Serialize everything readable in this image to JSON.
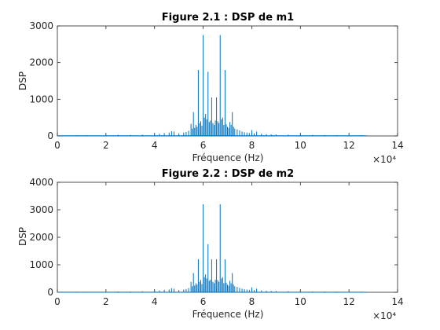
{
  "colors": {
    "series": "#0072BD",
    "axis": "#262626",
    "background": "#ffffff"
  },
  "chart_data": [
    {
      "type": "line",
      "title": "Figure 2.1 : DSP de m1",
      "xlabel": "Fréquence (Hz)",
      "ylabel": "DSP",
      "xlim": [
        0,
        140000
      ],
      "ylim": [
        0,
        3000
      ],
      "x_ticks": [
        0,
        20000,
        40000,
        60000,
        80000,
        100000,
        120000,
        140000
      ],
      "x_tick_labels": [
        "0",
        "2",
        "4",
        "6",
        "8",
        "10",
        "12",
        "14"
      ],
      "x_exponent_label": "×10⁴",
      "y_ticks": [
        0,
        1000,
        2000,
        3000
      ],
      "y_tick_labels": [
        "0",
        "1000",
        "2000",
        "3000"
      ],
      "grid": false,
      "series": [
        {
          "x": [
            2000,
            8000,
            12000,
            20000,
            25000,
            30000,
            35000,
            40000,
            42000,
            44000,
            46000,
            47000,
            48000,
            50000,
            52000,
            53000,
            54000,
            55000,
            55500,
            56000,
            56500,
            57000,
            57500,
            58000,
            58500,
            59000,
            59500,
            60000,
            60500,
            61000,
            61500,
            62000,
            62500,
            63000,
            63500,
            64000,
            64500,
            65000,
            65500,
            66000,
            66500,
            67000,
            67500,
            68000,
            68500,
            69000,
            69500,
            70000,
            70500,
            71000,
            71500,
            72000,
            72500,
            73000,
            74000,
            75000,
            76000,
            77000,
            78000,
            79000,
            80000,
            81000,
            82000,
            84000,
            86000,
            88000,
            90000,
            95000,
            100000,
            105000,
            110000,
            115000,
            120000,
            125000,
            127000
          ],
          "y": [
            15,
            20,
            18,
            25,
            30,
            28,
            35,
            40,
            60,
            80,
            90,
            130,
            120,
            70,
            90,
            110,
            140,
            330,
            200,
            650,
            220,
            300,
            250,
            1800,
            350,
            400,
            280,
            2750,
            500,
            600,
            450,
            1750,
            380,
            420,
            1050,
            350,
            300,
            420,
            1050,
            400,
            350,
            2750,
            450,
            500,
            300,
            1800,
            320,
            250,
            220,
            380,
            300,
            650,
            250,
            200,
            180,
            150,
            120,
            100,
            90,
            80,
            160,
            70,
            120,
            60,
            50,
            45,
            40,
            35,
            30,
            28,
            25,
            22,
            20,
            18,
            12
          ]
        }
      ]
    },
    {
      "type": "line",
      "title": "Figure 2.2 : DSP de m2",
      "xlabel": "Fréquence (Hz)",
      "ylabel": "DSP",
      "xlim": [
        0,
        140000
      ],
      "ylim": [
        0,
        4000
      ],
      "x_ticks": [
        0,
        20000,
        40000,
        60000,
        80000,
        100000,
        120000,
        140000
      ],
      "x_tick_labels": [
        "0",
        "2",
        "4",
        "6",
        "8",
        "10",
        "12",
        "14"
      ],
      "x_exponent_label": "×10⁴",
      "y_ticks": [
        0,
        1000,
        2000,
        3000,
        4000
      ],
      "y_tick_labels": [
        "0",
        "1000",
        "2000",
        "3000",
        "4000"
      ],
      "grid": false,
      "series": [
        {
          "x": [
            2000,
            8000,
            12000,
            20000,
            25000,
            30000,
            35000,
            40000,
            42000,
            44000,
            46000,
            47000,
            48000,
            50000,
            52000,
            53000,
            54000,
            55000,
            55500,
            56000,
            56500,
            57000,
            57500,
            58000,
            58500,
            59000,
            59500,
            60000,
            60500,
            61000,
            61500,
            62000,
            62500,
            63000,
            63500,
            64000,
            64500,
            65000,
            65500,
            66000,
            66500,
            67000,
            67500,
            68000,
            68500,
            69000,
            69500,
            70000,
            70500,
            71000,
            71500,
            72000,
            72500,
            73000,
            74000,
            75000,
            76000,
            77000,
            78000,
            79000,
            80000,
            81000,
            82000,
            84000,
            86000,
            88000,
            90000,
            95000,
            100000,
            105000,
            110000,
            115000,
            120000,
            125000,
            127000
          ],
          "y": [
            15,
            20,
            18,
            25,
            30,
            28,
            35,
            45,
            65,
            90,
            100,
            150,
            130,
            80,
            100,
            120,
            150,
            380,
            220,
            700,
            250,
            330,
            280,
            1200,
            380,
            450,
            300,
            3200,
            550,
            650,
            500,
            1750,
            420,
            460,
            1200,
            380,
            330,
            460,
            1200,
            440,
            380,
            3200,
            500,
            550,
            330,
            1200,
            350,
            280,
            240,
            420,
            330,
            700,
            280,
            220,
            200,
            160,
            130,
            110,
            100,
            90,
            180,
            80,
            130,
            65,
            55,
            50,
            45,
            38,
            33,
            30,
            27,
            24,
            22,
            20,
            13
          ]
        }
      ]
    }
  ]
}
